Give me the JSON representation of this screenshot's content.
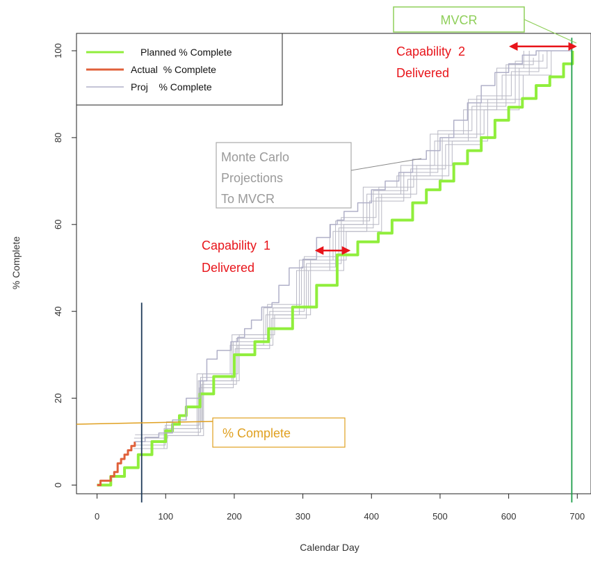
{
  "chart_data": {
    "type": "line",
    "xlabel": "Calendar Day",
    "ylabel": "% Complete",
    "xlim": [
      -30,
      720
    ],
    "ylim": [
      -2,
      104
    ],
    "x_ticks": [
      0,
      100,
      200,
      300,
      400,
      500,
      600,
      700
    ],
    "x_tick_labels": [
      "0",
      "100",
      "200",
      "300",
      "400",
      "500",
      "600",
      "700"
    ],
    "y_ticks": [
      0,
      20,
      40,
      60,
      80,
      100
    ],
    "y_tick_labels": [
      "0",
      "20",
      "40",
      "60",
      "80",
      "100"
    ],
    "legend": {
      "placement": "top-left",
      "entries": [
        {
          "label": "Planned % Complete",
          "color": "#90ee3c"
        },
        {
          "label": "Actual  % Complete",
          "color": "#e0603a"
        },
        {
          "label": "Proj    % Complete",
          "color": "#b0b0c8"
        }
      ]
    },
    "series": [
      {
        "name": "Planned % Complete",
        "color": "#90ee3c",
        "points": [
          [
            0,
            0
          ],
          [
            20,
            2
          ],
          [
            40,
            4
          ],
          [
            60,
            7
          ],
          [
            80,
            10
          ],
          [
            100,
            12.5
          ],
          [
            110,
            14
          ],
          [
            120,
            16
          ],
          [
            130,
            18
          ],
          [
            150,
            21
          ],
          [
            170,
            25
          ],
          [
            200,
            30
          ],
          [
            230,
            33
          ],
          [
            250,
            36
          ],
          [
            280,
            36
          ],
          [
            285,
            41
          ],
          [
            315,
            41
          ],
          [
            320,
            46
          ],
          [
            345,
            46
          ],
          [
            350,
            53
          ],
          [
            375,
            53
          ],
          [
            380,
            56
          ],
          [
            410,
            58
          ],
          [
            430,
            61
          ],
          [
            450,
            61
          ],
          [
            460,
            65
          ],
          [
            480,
            68
          ],
          [
            500,
            70
          ],
          [
            520,
            74
          ],
          [
            540,
            77
          ],
          [
            560,
            80
          ],
          [
            580,
            84
          ],
          [
            600,
            87
          ],
          [
            620,
            89
          ],
          [
            640,
            92
          ],
          [
            660,
            94
          ],
          [
            680,
            97
          ],
          [
            693,
            100
          ]
        ]
      },
      {
        "name": "Actual  % Complete",
        "color": "#e0603a",
        "points": [
          [
            0,
            0
          ],
          [
            5,
            1
          ],
          [
            18,
            1
          ],
          [
            20,
            2
          ],
          [
            25,
            3
          ],
          [
            30,
            5
          ],
          [
            35,
            6
          ],
          [
            40,
            7
          ],
          [
            45,
            8
          ],
          [
            50,
            9
          ],
          [
            55,
            10
          ]
        ]
      },
      {
        "name": "Proj    % Complete",
        "color": "#b0b0c8",
        "points": [
          [
            55,
            10
          ],
          [
            70,
            11
          ],
          [
            90,
            12
          ],
          [
            110,
            15
          ],
          [
            130,
            20
          ],
          [
            150,
            24
          ],
          [
            160,
            29
          ],
          [
            175,
            31
          ],
          [
            195,
            33
          ],
          [
            205,
            34
          ],
          [
            215,
            36
          ],
          [
            225,
            38
          ],
          [
            240,
            41
          ],
          [
            255,
            42
          ],
          [
            265,
            46
          ],
          [
            275,
            46
          ],
          [
            280,
            50
          ],
          [
            300,
            52
          ],
          [
            320,
            57
          ],
          [
            340,
            60
          ],
          [
            350,
            61
          ],
          [
            360,
            63
          ],
          [
            380,
            65
          ],
          [
            400,
            68
          ],
          [
            420,
            70
          ],
          [
            440,
            72
          ],
          [
            460,
            75
          ],
          [
            480,
            77
          ],
          [
            500,
            80
          ],
          [
            520,
            84
          ],
          [
            540,
            88
          ],
          [
            560,
            92
          ],
          [
            580,
            95
          ],
          [
            600,
            97
          ],
          [
            620,
            99
          ],
          [
            640,
            100
          ],
          [
            693,
            100
          ]
        ]
      }
    ],
    "projection_spread": [
      [
        55,
        10
      ],
      [
        100,
        13
      ],
      [
        150,
        24
      ],
      [
        200,
        33
      ],
      [
        250,
        40
      ],
      [
        300,
        51
      ],
      [
        350,
        60
      ],
      [
        400,
        67
      ],
      [
        450,
        72
      ],
      [
        500,
        80
      ],
      [
        550,
        88
      ],
      [
        600,
        96
      ],
      [
        640,
        100
      ]
    ],
    "vertical_lines": [
      {
        "x": 65,
        "color": "#1f3b5a",
        "y_from": -4,
        "y_to": 42
      },
      {
        "x": 692,
        "color": "#1e9e4a",
        "y_from": -4,
        "y_to": 103
      }
    ],
    "annotations": {
      "mvcr": {
        "text": "MVCR",
        "color": "#8fcf5a"
      },
      "capability2": {
        "line1": "Capability  2",
        "line2": "Delivered",
        "color": "#e8141a",
        "arrow_x": [
          603,
          697
        ],
        "arrow_y": 101
      },
      "capability1": {
        "line1": "Capability  1",
        "line2": "Delivered",
        "color": "#e8141a",
        "arrow_x": [
          320,
          367
        ],
        "arrow_y": 54
      },
      "monte_carlo": {
        "line1": "Monte Carlo",
        "line2": "Projections",
        "line3": "To MVCR",
        "color": "#9a9a9a"
      },
      "pct_complete": {
        "text": "% Complete",
        "color": "#e0a020"
      }
    }
  }
}
